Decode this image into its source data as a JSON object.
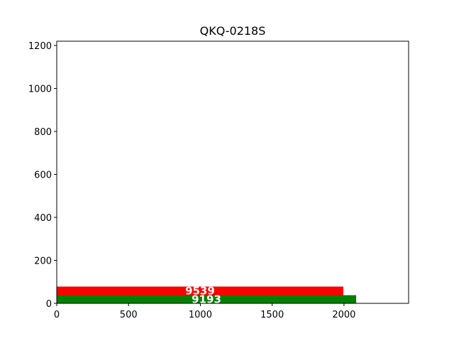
{
  "chart_data": {
    "type": "bar",
    "orientation": "horizontal",
    "title": "QKQ-0218S",
    "xlabel": "",
    "ylabel": "",
    "xlim": [
      0,
      2450
    ],
    "ylim": [
      0,
      1220
    ],
    "x_ticks": [
      0,
      500,
      1000,
      1500,
      2000
    ],
    "y_ticks": [
      0,
      200,
      400,
      600,
      800,
      1000,
      1200
    ],
    "grid": false,
    "bars": [
      {
        "label": "9193",
        "value": 2085,
        "y_start": 0,
        "y_end": 38,
        "color": "#008000"
      },
      {
        "label": "9539",
        "value": 1995,
        "y_start": 38,
        "y_end": 78,
        "color": "#ff0000"
      }
    ]
  }
}
